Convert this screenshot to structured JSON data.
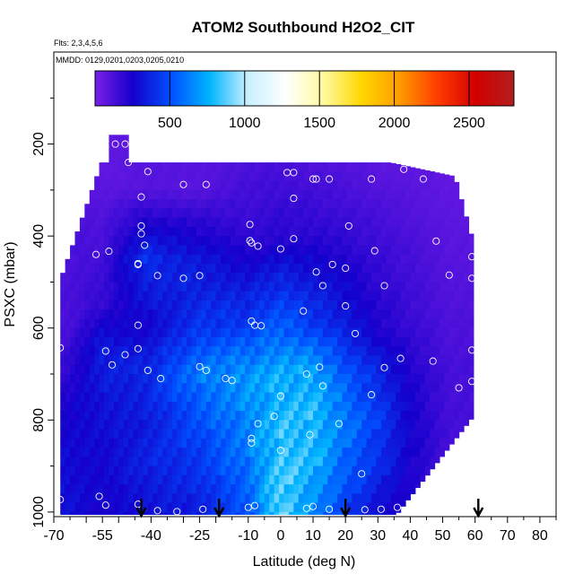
{
  "chart_data": {
    "type": "heatmap",
    "title": "ATOM2 Southbound H2O2_CIT",
    "subtitle_flights": "Flts: 2,3,4,5,6",
    "subtitle_dates": "MMDD: 0129,0201,0203,0205,0210",
    "xlabel": "Latitude (deg N)",
    "ylabel": "PSXC (mbar)",
    "xlim": [
      -70,
      85
    ],
    "ylim": [
      1010,
      0
    ],
    "x_ticks": [
      -70,
      -55,
      -40,
      -25,
      -10,
      0,
      10,
      20,
      30,
      40,
      50,
      60,
      70,
      80
    ],
    "y_ticks": [
      200,
      400,
      600,
      800,
      1000
    ],
    "colorbar": {
      "min": 0,
      "max": 2800,
      "ticks": [
        500,
        1000,
        1500,
        2000,
        2500
      ],
      "stops": [
        "#7a1fe6",
        "#1400cc",
        "#0050ff",
        "#00b4ff",
        "#c8f0ff",
        "#ffffff",
        "#fffaa0",
        "#ffd700",
        "#ff9b00",
        "#ff3c00",
        "#d20000",
        "#b21e1e"
      ]
    },
    "arrow_latitudes": [
      -43,
      -19,
      20,
      61
    ],
    "profiles": [
      {
        "x": -66,
        "p": [
          600,
          800,
          950
        ],
        "v": [
          120,
          260,
          300
        ]
      },
      {
        "x": -55,
        "p": [
          250,
          400,
          550,
          650,
          750,
          850,
          980
        ],
        "v": [
          60,
          120,
          180,
          350,
          320,
          280,
          250
        ]
      },
      {
        "x": -42,
        "p": [
          300,
          450,
          600,
          700,
          800,
          900,
          990
        ],
        "v": [
          90,
          400,
          250,
          380,
          330,
          360,
          300
        ]
      },
      {
        "x": -25,
        "p": [
          300,
          450,
          600,
          700,
          800,
          900,
          990
        ],
        "v": [
          90,
          320,
          420,
          620,
          500,
          420,
          350
        ]
      },
      {
        "x": -10,
        "p": [
          250,
          400,
          600,
          700,
          800,
          900,
          990
        ],
        "v": [
          120,
          180,
          450,
          700,
          650,
          600,
          520
        ]
      },
      {
        "x": 0,
        "p": [
          250,
          400,
          600,
          700,
          800,
          900,
          990
        ],
        "v": [
          130,
          200,
          550,
          750,
          800,
          850,
          900
        ]
      },
      {
        "x": 10,
        "p": [
          250,
          400,
          600,
          700,
          800,
          900,
          990
        ],
        "v": [
          110,
          200,
          450,
          750,
          800,
          780,
          650
        ]
      },
      {
        "x": 20,
        "p": [
          250,
          400,
          600,
          700,
          800,
          900,
          990
        ],
        "v": [
          100,
          180,
          350,
          520,
          620,
          550,
          450
        ]
      },
      {
        "x": 30,
        "p": [
          250,
          400,
          600,
          700,
          800,
          900,
          990
        ],
        "v": [
          80,
          150,
          230,
          380,
          450,
          400,
          300
        ]
      },
      {
        "x": 40,
        "p": [
          250,
          400,
          600,
          700,
          800,
          900,
          990
        ],
        "v": [
          70,
          120,
          170,
          230,
          260,
          240,
          200
        ]
      },
      {
        "x": 52,
        "p": [
          250,
          450,
          700,
          900
        ],
        "v": [
          60,
          90,
          130,
          140
        ]
      }
    ],
    "observations": [
      {
        "lat": -63,
        "p": 260
      },
      {
        "lat": -58,
        "p": 240
      },
      {
        "lat": -55,
        "p": 200
      },
      {
        "lat": -51,
        "p": 200
      },
      {
        "lat": -48,
        "p": 200
      },
      {
        "lat": -41,
        "p": 260
      },
      {
        "lat": -43,
        "p": 315
      },
      {
        "lat": -47,
        "p": 240
      },
      {
        "lat": -30,
        "p": 288
      },
      {
        "lat": -23,
        "p": 288
      },
      {
        "lat": -10,
        "p": 218
      },
      {
        "lat": -9.5,
        "p": 218
      },
      {
        "lat": 2,
        "p": 262
      },
      {
        "lat": 4,
        "p": 262
      },
      {
        "lat": 4,
        "p": 318
      },
      {
        "lat": 10,
        "p": 276
      },
      {
        "lat": 11,
        "p": 276
      },
      {
        "lat": 15,
        "p": 276
      },
      {
        "lat": 28,
        "p": 276
      },
      {
        "lat": 38,
        "p": 255
      },
      {
        "lat": 44,
        "p": 276
      },
      {
        "lat": 48,
        "p": 240
      },
      {
        "lat": -43,
        "p": 378
      },
      {
        "lat": -43,
        "p": 395
      },
      {
        "lat": -42,
        "p": 420
      },
      {
        "lat": -53,
        "p": 433
      },
      {
        "lat": -57,
        "p": 440
      },
      {
        "lat": -44,
        "p": 460
      },
      {
        "lat": -44,
        "p": 462
      },
      {
        "lat": -38,
        "p": 486
      },
      {
        "lat": -30,
        "p": 492
      },
      {
        "lat": -25,
        "p": 486
      },
      {
        "lat": -9.5,
        "p": 375
      },
      {
        "lat": -9.5,
        "p": 410
      },
      {
        "lat": -9,
        "p": 415
      },
      {
        "lat": -7,
        "p": 422
      },
      {
        "lat": 4,
        "p": 406
      },
      {
        "lat": 0,
        "p": 428
      },
      {
        "lat": 11,
        "p": 478
      },
      {
        "lat": 13,
        "p": 508
      },
      {
        "lat": 16,
        "p": 462
      },
      {
        "lat": 20,
        "p": 470
      },
      {
        "lat": 21,
        "p": 378
      },
      {
        "lat": 29,
        "p": 432
      },
      {
        "lat": 32,
        "p": 508
      },
      {
        "lat": 52,
        "p": 485
      },
      {
        "lat": 59,
        "p": 445
      },
      {
        "lat": 48,
        "p": 411
      },
      {
        "lat": 59,
        "p": 492
      },
      {
        "lat": 20,
        "p": 552
      },
      {
        "lat": 7,
        "p": 563
      },
      {
        "lat": -8,
        "p": 594
      },
      {
        "lat": -9,
        "p": 585
      },
      {
        "lat": -6,
        "p": 595
      },
      {
        "lat": -44,
        "p": 594
      },
      {
        "lat": -54,
        "p": 650
      },
      {
        "lat": -48,
        "p": 658
      },
      {
        "lat": -52,
        "p": 680
      },
      {
        "lat": -44,
        "p": 645
      },
      {
        "lat": -41,
        "p": 692
      },
      {
        "lat": -37,
        "p": 710
      },
      {
        "lat": -25,
        "p": 684
      },
      {
        "lat": -23,
        "p": 692
      },
      {
        "lat": -17,
        "p": 710
      },
      {
        "lat": -15,
        "p": 714
      },
      {
        "lat": 8,
        "p": 700
      },
      {
        "lat": 12,
        "p": 685
      },
      {
        "lat": 23,
        "p": 612
      },
      {
        "lat": 32,
        "p": 686
      },
      {
        "lat": 37,
        "p": 666
      },
      {
        "lat": 47,
        "p": 672
      },
      {
        "lat": 59,
        "p": 648
      },
      {
        "lat": -68,
        "p": 643
      },
      {
        "lat": 13,
        "p": 726
      },
      {
        "lat": 0,
        "p": 748
      },
      {
        "lat": 28,
        "p": 745
      },
      {
        "lat": 55,
        "p": 730
      },
      {
        "lat": 59,
        "p": 716
      },
      {
        "lat": -7,
        "p": 808
      },
      {
        "lat": -9,
        "p": 840
      },
      {
        "lat": -9,
        "p": 850
      },
      {
        "lat": -2,
        "p": 792
      },
      {
        "lat": 9,
        "p": 832
      },
      {
        "lat": 18,
        "p": 808
      },
      {
        "lat": 0,
        "p": 866
      },
      {
        "lat": 25,
        "p": 917
      },
      {
        "lat": -68,
        "p": 973
      },
      {
        "lat": -56,
        "p": 966
      },
      {
        "lat": -54,
        "p": 985
      },
      {
        "lat": -44,
        "p": 983
      },
      {
        "lat": -38,
        "p": 997
      },
      {
        "lat": -32,
        "p": 999
      },
      {
        "lat": -24,
        "p": 994
      },
      {
        "lat": -8,
        "p": 986
      },
      {
        "lat": -10,
        "p": 990
      },
      {
        "lat": 8,
        "p": 992
      },
      {
        "lat": 10,
        "p": 988
      },
      {
        "lat": 15,
        "p": 994
      },
      {
        "lat": 26,
        "p": 995
      },
      {
        "lat": 31,
        "p": 994
      },
      {
        "lat": 36,
        "p": 990
      },
      {
        "lat": 45,
        "p": 997
      },
      {
        "lat": 52,
        "p": 986
      }
    ]
  }
}
